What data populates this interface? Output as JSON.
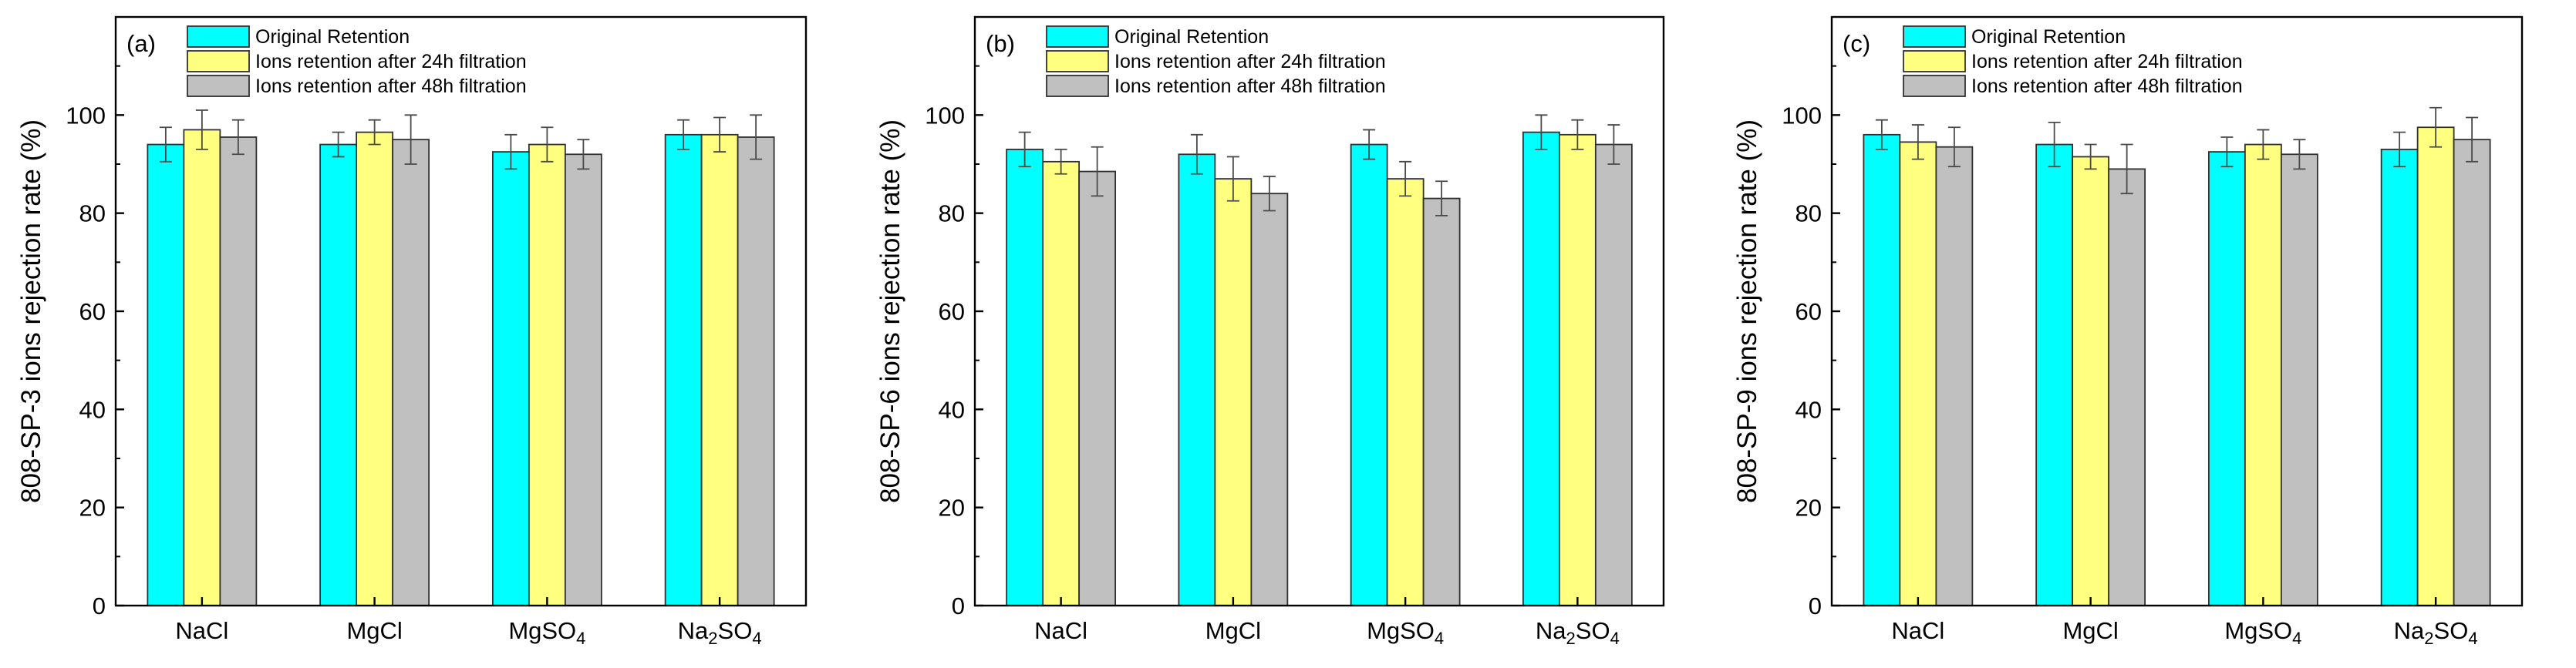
{
  "chart_data": [
    {
      "type": "bar",
      "panel_label": "(a)",
      "ylabel": "808-SP-3 ions rejection rate (%)",
      "xlabel": "",
      "ylim": [
        0,
        120
      ],
      "yticks": [
        0,
        20,
        40,
        60,
        80,
        100
      ],
      "categories": [
        {
          "base": "NaCl",
          "parts": [
            {
              "t": "NaCl",
              "sub": false
            }
          ]
        },
        {
          "base": "MgCl",
          "parts": [
            {
              "t": "MgCl",
              "sub": false
            }
          ]
        },
        {
          "base": "MgSO4",
          "parts": [
            {
              "t": "MgSO",
              "sub": false
            },
            {
              "t": "4",
              "sub": true
            }
          ]
        },
        {
          "base": "Na2SO4",
          "parts": [
            {
              "t": "Na",
              "sub": false
            },
            {
              "t": "2",
              "sub": true
            },
            {
              "t": "SO",
              "sub": false
            },
            {
              "t": "4",
              "sub": true
            }
          ]
        }
      ],
      "series": [
        {
          "name": "Original Retention",
          "color": "#00FFFF",
          "values": [
            94,
            94,
            92.5,
            96
          ],
          "errors": [
            3.5,
            2.5,
            3.5,
            3
          ]
        },
        {
          "name": "Ions retention after 24h filtration",
          "color": "#FFFF80",
          "values": [
            97,
            96.5,
            94,
            96
          ],
          "errors": [
            4,
            2.5,
            3.5,
            3.5
          ]
        },
        {
          "name": "Ions retention after 48h filtration",
          "color": "#C0C0C0",
          "values": [
            95.5,
            95,
            92,
            95.5
          ],
          "errors": [
            3.5,
            5,
            3,
            4.5
          ]
        }
      ],
      "legend_position": "top-left"
    },
    {
      "type": "bar",
      "panel_label": "(b)",
      "ylabel": "808-SP-6 ions rejection rate (%)",
      "xlabel": "",
      "ylim": [
        0,
        120
      ],
      "yticks": [
        0,
        20,
        40,
        60,
        80,
        100
      ],
      "categories": [
        {
          "base": "NaCl",
          "parts": [
            {
              "t": "NaCl",
              "sub": false
            }
          ]
        },
        {
          "base": "MgCl",
          "parts": [
            {
              "t": "MgCl",
              "sub": false
            }
          ]
        },
        {
          "base": "MgSO4",
          "parts": [
            {
              "t": "MgSO",
              "sub": false
            },
            {
              "t": "4",
              "sub": true
            }
          ]
        },
        {
          "base": "Na2SO4",
          "parts": [
            {
              "t": "Na",
              "sub": false
            },
            {
              "t": "2",
              "sub": true
            },
            {
              "t": "SO",
              "sub": false
            },
            {
              "t": "4",
              "sub": true
            }
          ]
        }
      ],
      "series": [
        {
          "name": "Original Retention",
          "color": "#00FFFF",
          "values": [
            93,
            92,
            94,
            96.5
          ],
          "errors": [
            3.5,
            4,
            3,
            3.5
          ]
        },
        {
          "name": "Ions retention after 24h filtration",
          "color": "#FFFF80",
          "values": [
            90.5,
            87,
            87,
            96
          ],
          "errors": [
            2.5,
            4.5,
            3.5,
            3
          ]
        },
        {
          "name": "Ions retention after 48h filtration",
          "color": "#C0C0C0",
          "values": [
            88.5,
            84,
            83,
            94
          ],
          "errors": [
            5,
            3.5,
            3.5,
            4
          ]
        }
      ],
      "legend_position": "top-left"
    },
    {
      "type": "bar",
      "panel_label": "(c)",
      "ylabel": "808-SP-9 ions rejection rate (%)",
      "xlabel": "",
      "ylim": [
        0,
        120
      ],
      "yticks": [
        0,
        20,
        40,
        60,
        80,
        100
      ],
      "categories": [
        {
          "base": "NaCl",
          "parts": [
            {
              "t": "NaCl",
              "sub": false
            }
          ]
        },
        {
          "base": "MgCl",
          "parts": [
            {
              "t": "MgCl",
              "sub": false
            }
          ]
        },
        {
          "base": "MgSO4",
          "parts": [
            {
              "t": "MgSO",
              "sub": false
            },
            {
              "t": "4",
              "sub": true
            }
          ]
        },
        {
          "base": "Na2SO4",
          "parts": [
            {
              "t": "Na",
              "sub": false
            },
            {
              "t": "2",
              "sub": true
            },
            {
              "t": "SO",
              "sub": false
            },
            {
              "t": "4",
              "sub": true
            }
          ]
        }
      ],
      "series": [
        {
          "name": "Original Retention",
          "color": "#00FFFF",
          "values": [
            96,
            94,
            92.5,
            93
          ],
          "errors": [
            3,
            4.5,
            3,
            3.5
          ]
        },
        {
          "name": "Ions retention after 24h filtration",
          "color": "#FFFF80",
          "values": [
            94.5,
            91.5,
            94,
            97.5
          ],
          "errors": [
            3.5,
            2.5,
            3,
            4
          ]
        },
        {
          "name": "Ions retention after 48h filtration",
          "color": "#C0C0C0",
          "values": [
            93.5,
            89,
            92,
            95
          ],
          "errors": [
            4,
            5,
            3,
            4.5
          ]
        }
      ],
      "legend_position": "top-left"
    }
  ]
}
